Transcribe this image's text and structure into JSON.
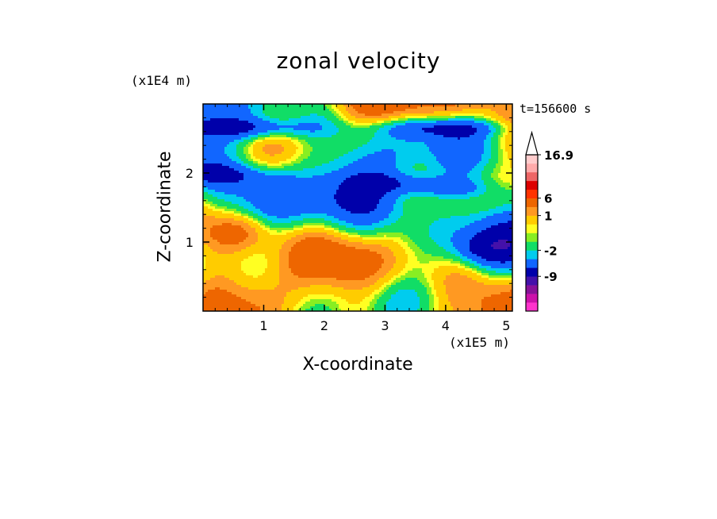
{
  "chart_data": {
    "type": "heatmap",
    "title": "zonal velocity",
    "xlabel": "X-coordinate",
    "ylabel": "Z-coordinate",
    "x_unit": "(x1E5 m)",
    "z_unit": "(x1E4 m)",
    "time_label": "t=156600 s",
    "xlim": [
      0,
      5.1
    ],
    "zlim": [
      0,
      3.0
    ],
    "x_ticks": [
      {
        "value": 1,
        "label": "1"
      },
      {
        "value": 2,
        "label": "2"
      },
      {
        "value": 3,
        "label": "3"
      },
      {
        "value": 4,
        "label": "4"
      },
      {
        "value": 5,
        "label": "5"
      }
    ],
    "z_ticks": [
      {
        "value": 1,
        "label": "1"
      },
      {
        "value": 2,
        "label": "2"
      }
    ],
    "colorbar": {
      "colors": [
        "#ff33cc",
        "#cc11aa",
        "#881199",
        "#4411aa",
        "#0000aa",
        "#1166ff",
        "#00ccee",
        "#11dd66",
        "#88ee22",
        "#ffff22",
        "#ffcc00",
        "#ff9922",
        "#ee6600",
        "#ff3300",
        "#dd0000",
        "#ee6666",
        "#ffaaaa",
        "#ffcccc"
      ],
      "labels": [
        {
          "index": 3,
          "text": "-9"
        },
        {
          "index": 6,
          "text": "-2"
        },
        {
          "index": 10,
          "text": "1"
        },
        {
          "index": 12,
          "text": "6"
        },
        {
          "index": 17,
          "text": "16.9"
        }
      ],
      "extend_max": true
    }
  }
}
